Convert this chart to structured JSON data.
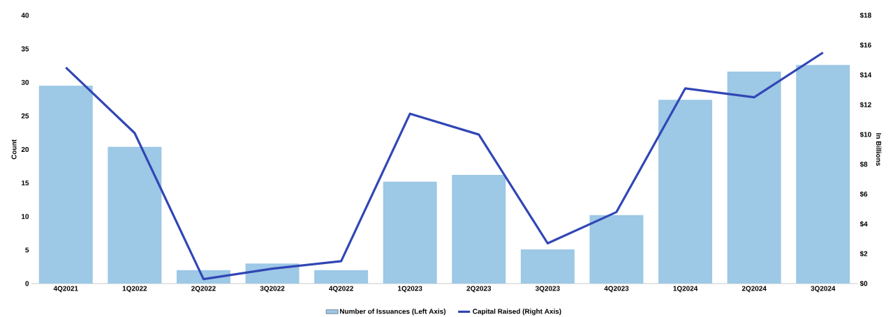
{
  "chart_data": {
    "type": "bar",
    "ylabel": "Count",
    "y2label": "In Billions",
    "categories": [
      "4Q2021",
      "1Q2022",
      "2Q2022",
      "3Q2022",
      "4Q2022",
      "1Q2023",
      "2Q2023",
      "3Q2023",
      "4Q2023",
      "1Q2024",
      "2Q2024",
      "3Q2024"
    ],
    "series": [
      {
        "name": "Number of Issuances (Left Axis)",
        "color": "#9dc8e6",
        "values": [
          29.5,
          20.4,
          2,
          3,
          2,
          15.2,
          16.2,
          5.1,
          10.2,
          27.4,
          31.6,
          32.6
        ]
      },
      {
        "name": "Capital Raised (Right Axis)",
        "type": "line",
        "axis": "y2",
        "color": "#3146b5",
        "values": [
          14.5,
          10.1,
          0.3,
          1.0,
          1.5,
          11.4,
          10.0,
          2.7,
          4.8,
          13.1,
          12.5,
          15.5
        ]
      }
    ],
    "ylim": [
      0,
      40
    ],
    "yticks": [
      0,
      5,
      10,
      15,
      20,
      25,
      30,
      35,
      40
    ],
    "y2lim": [
      0,
      18
    ],
    "y2ticks": [
      {
        "value": 0,
        "label": "$0"
      },
      {
        "value": 2,
        "label": "$2"
      },
      {
        "value": 4,
        "label": "$4"
      },
      {
        "value": 6,
        "label": "$6"
      },
      {
        "value": 8,
        "label": "$8"
      },
      {
        "value": 10,
        "label": "$10"
      },
      {
        "value": 12,
        "label": "$12"
      },
      {
        "value": 14,
        "label": "$14"
      },
      {
        "value": 16,
        "label": "$16"
      },
      {
        "value": 18,
        "label": "$18"
      }
    ],
    "legend": "bottom",
    "grid": false
  }
}
